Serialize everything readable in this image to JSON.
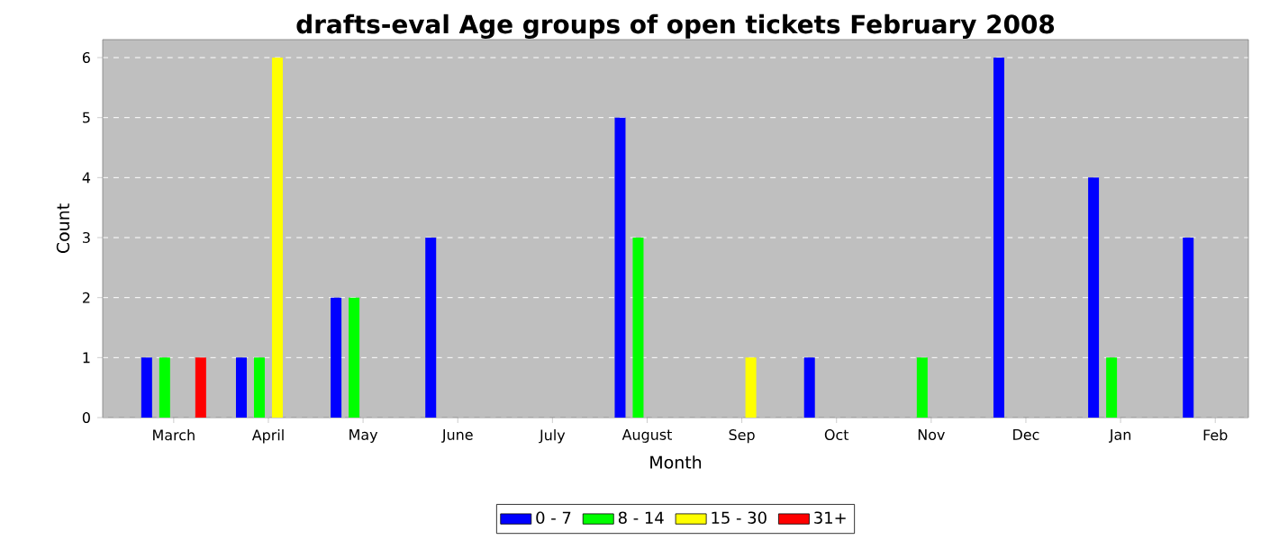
{
  "chart_data": {
    "type": "bar",
    "title": "drafts-eval Age groups of open tickets February 2008",
    "xlabel": "Month",
    "ylabel": "Count",
    "categories": [
      "March",
      "April",
      "May",
      "June",
      "July",
      "August",
      "Sep",
      "Oct",
      "Nov",
      "Dec",
      "Jan",
      "Feb"
    ],
    "series": [
      {
        "name": "0 - 7",
        "color": "#0000ff",
        "values": [
          1,
          1,
          2,
          3,
          0,
          5,
          0,
          1,
          0,
          6,
          4,
          3
        ]
      },
      {
        "name": "8 - 14",
        "color": "#00ff00",
        "values": [
          1,
          1,
          2,
          0,
          0,
          3,
          0,
          0,
          1,
          0,
          1,
          0
        ]
      },
      {
        "name": "15 - 30",
        "color": "#ffff00",
        "values": [
          0,
          6,
          0,
          0,
          0,
          0,
          1,
          0,
          0,
          0,
          0,
          0
        ]
      },
      {
        "name": "31+",
        "color": "#ff0000",
        "values": [
          1,
          0,
          0,
          0,
          0,
          0,
          0,
          0,
          0,
          0,
          0,
          0
        ]
      }
    ],
    "ylim": [
      0,
      6.3
    ],
    "yticks": [
      0,
      1,
      2,
      3,
      4,
      5,
      6
    ],
    "grid": "y",
    "legend": "bottom"
  }
}
